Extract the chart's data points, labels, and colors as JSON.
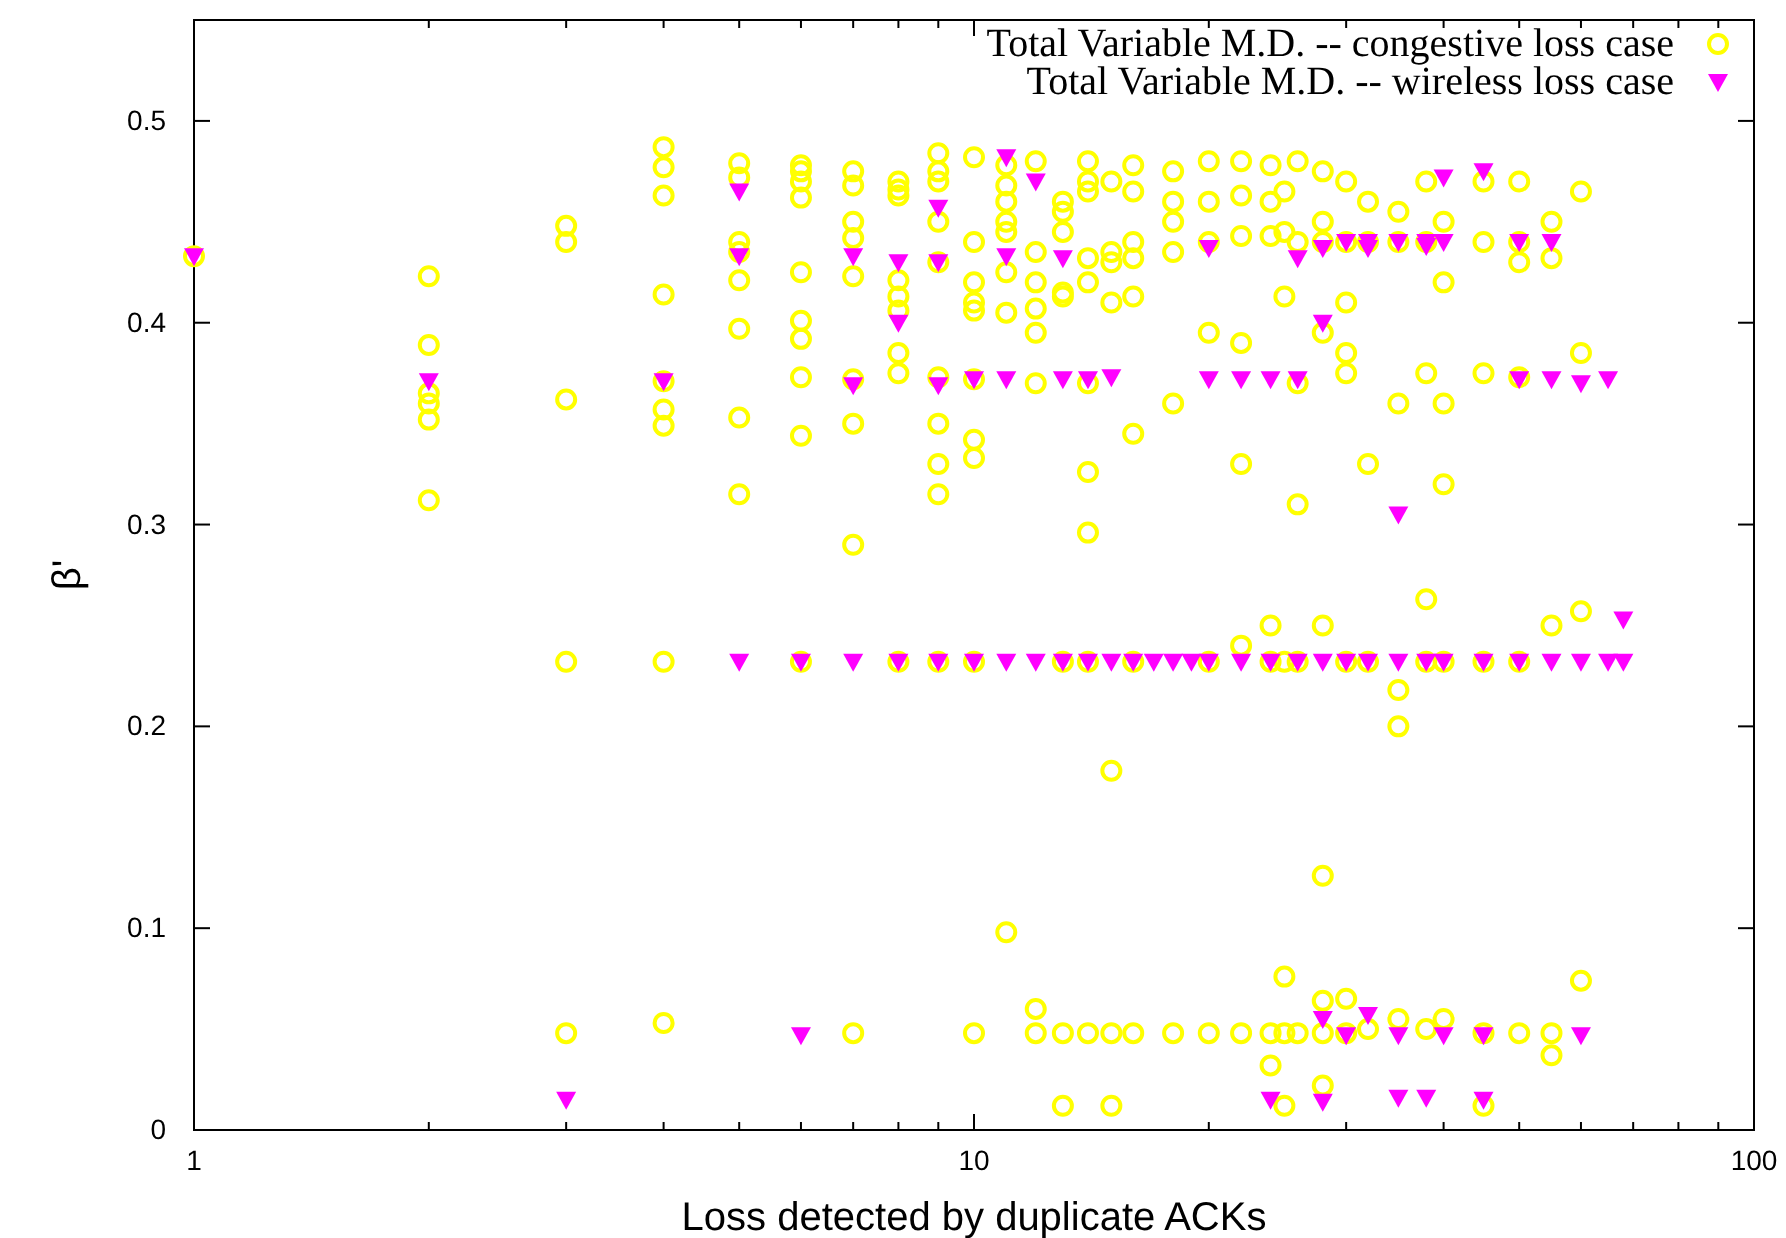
{
  "chart_data": {
    "type": "scatter",
    "xlabel": "Loss detected by duplicate ACKs",
    "ylabel": "β'",
    "log": "x",
    "grid": false,
    "legend": "top right",
    "xlim": [
      1,
      100
    ],
    "ylim": [
      0,
      0.55
    ],
    "xticks": [
      1,
      {
        "value": 2,
        "label": null
      },
      {
        "value": 3,
        "label": null
      },
      {
        "value": 4,
        "label": null
      },
      {
        "value": 5,
        "label": null
      },
      {
        "value": 6,
        "label": null
      },
      {
        "value": 7,
        "label": null
      },
      {
        "value": 8,
        "label": null
      },
      {
        "value": 9,
        "label": null
      },
      10,
      {
        "value": 20,
        "label": null
      },
      {
        "value": 30,
        "label": null
      },
      {
        "value": 40,
        "label": null
      },
      {
        "value": 50,
        "label": null
      },
      {
        "value": 60,
        "label": null
      },
      {
        "value": 70,
        "label": null
      },
      {
        "value": 80,
        "label": null
      },
      {
        "value": 90,
        "label": null
      },
      100
    ],
    "yticks": [
      0,
      0.1,
      0.2,
      0.3,
      0.4,
      0.5
    ],
    "series": [
      {
        "name": "Total Variable M.D. -- congestive loss case",
        "color": "#ffff00",
        "marker": "circle",
        "x": [
          1,
          2,
          2,
          2,
          2,
          2,
          2,
          3,
          3,
          3,
          3,
          3,
          4,
          4,
          4,
          4,
          4,
          4,
          4,
          4,
          4,
          5,
          5,
          5,
          5,
          5,
          5,
          5,
          5,
          6,
          6,
          6,
          6,
          6,
          6,
          6,
          6,
          6,
          6,
          7,
          7,
          7,
          7,
          7,
          7,
          7,
          7,
          7,
          8,
          8,
          8,
          8,
          8,
          8,
          8,
          8,
          8,
          9,
          9,
          9,
          9,
          9,
          9,
          9,
          9,
          9,
          9,
          10,
          10,
          10,
          10,
          10,
          10,
          10,
          10,
          10,
          10,
          11,
          11,
          11,
          11,
          11,
          11,
          11,
          11,
          12,
          12,
          12,
          12,
          12,
          12,
          12,
          12,
          13,
          13,
          13,
          13,
          13,
          13,
          13,
          13,
          14,
          14,
          14,
          14,
          14,
          14,
          14,
          14,
          14,
          14,
          15,
          15,
          15,
          15,
          15,
          15,
          15,
          16,
          16,
          16,
          16,
          16,
          16,
          16,
          16,
          18,
          18,
          18,
          18,
          18,
          18,
          20,
          20,
          20,
          20,
          20,
          20,
          22,
          22,
          22,
          22,
          22,
          22,
          22,
          24,
          24,
          24,
          24,
          24,
          24,
          24,
          25,
          25,
          25,
          25,
          25,
          25,
          25,
          26,
          26,
          26,
          26,
          26,
          26,
          28,
          28,
          28,
          28,
          28,
          28,
          28,
          28,
          28,
          30,
          30,
          30,
          30,
          30,
          30,
          30,
          30,
          32,
          32,
          32,
          32,
          32,
          35,
          35,
          35,
          35,
          35,
          35,
          38,
          38,
          38,
          38,
          38,
          38,
          40,
          40,
          40,
          40,
          40,
          40,
          45,
          45,
          45,
          45,
          45,
          45,
          50,
          50,
          50,
          50,
          50,
          50,
          55,
          55,
          55,
          55,
          55,
          60,
          60,
          60,
          60
        ],
        "values": [
          0.433,
          0.423,
          0.389,
          0.365,
          0.36,
          0.352,
          0.312,
          0.448,
          0.44,
          0.362,
          0.232,
          0.048,
          0.487,
          0.477,
          0.463,
          0.414,
          0.371,
          0.357,
          0.349,
          0.232,
          0.053,
          0.479,
          0.472,
          0.44,
          0.435,
          0.421,
          0.397,
          0.353,
          0.315,
          0.478,
          0.475,
          0.47,
          0.462,
          0.425,
          0.401,
          0.392,
          0.373,
          0.344,
          0.232,
          0.475,
          0.468,
          0.45,
          0.442,
          0.423,
          0.372,
          0.35,
          0.29,
          0.048,
          0.47,
          0.466,
          0.463,
          0.421,
          0.413,
          0.406,
          0.385,
          0.375,
          0.232,
          0.484,
          0.475,
          0.47,
          0.45,
          0.43,
          0.373,
          0.35,
          0.33,
          0.315,
          0.232,
          0.482,
          0.44,
          0.42,
          0.41,
          0.406,
          0.372,
          0.342,
          0.333,
          0.232,
          0.048,
          0.478,
          0.468,
          0.46,
          0.45,
          0.445,
          0.425,
          0.405,
          0.098,
          0.48,
          0.435,
          0.42,
          0.407,
          0.395,
          0.37,
          0.06,
          0.048,
          0.46,
          0.455,
          0.445,
          0.415,
          0.413,
          0.232,
          0.048,
          0.012,
          0.48,
          0.47,
          0.465,
          0.432,
          0.42,
          0.37,
          0.326,
          0.296,
          0.232,
          0.048,
          0.47,
          0.435,
          0.43,
          0.41,
          0.178,
          0.048,
          0.012,
          0.478,
          0.465,
          0.44,
          0.432,
          0.413,
          0.345,
          0.232,
          0.048,
          0.475,
          0.46,
          0.45,
          0.435,
          0.36,
          0.048,
          0.48,
          0.46,
          0.44,
          0.395,
          0.232,
          0.048,
          0.48,
          0.463,
          0.443,
          0.39,
          0.33,
          0.24,
          0.048,
          0.478,
          0.46,
          0.443,
          0.25,
          0.232,
          0.048,
          0.032,
          0.465,
          0.445,
          0.413,
          0.232,
          0.076,
          0.048,
          0.012,
          0.48,
          0.44,
          0.37,
          0.31,
          0.232,
          0.048,
          0.475,
          0.45,
          0.44,
          0.395,
          0.25,
          0.126,
          0.064,
          0.048,
          0.022,
          0.47,
          0.44,
          0.41,
          0.385,
          0.375,
          0.232,
          0.065,
          0.048,
          0.46,
          0.44,
          0.33,
          0.232,
          0.05,
          0.455,
          0.44,
          0.36,
          0.218,
          0.2,
          0.055,
          0.47,
          0.44,
          0.375,
          0.263,
          0.232,
          0.05,
          0.45,
          0.42,
          0.36,
          0.32,
          0.232,
          0.055,
          0.47,
          0.44,
          0.375,
          0.232,
          0.048,
          0.012,
          0.47,
          0.44,
          0.43,
          0.373,
          0.232,
          0.048,
          0.45,
          0.432,
          0.25,
          0.048,
          0.037,
          0.465,
          0.385,
          0.257,
          0.074
        ]
      },
      {
        "name": "Total Variable M.D. -- wireless loss case",
        "color": "#ff00ff",
        "marker": "triangle",
        "x": [
          1,
          2,
          3,
          4,
          5,
          5,
          5,
          6,
          6,
          7,
          7,
          7,
          8,
          8,
          8,
          9,
          9,
          9,
          9,
          10,
          10,
          11,
          11,
          11,
          11,
          12,
          12,
          13,
          13,
          13,
          14,
          14,
          15,
          15,
          16,
          17,
          18,
          19,
          20,
          20,
          20,
          22,
          22,
          24,
          24,
          24,
          26,
          26,
          26,
          28,
          28,
          28,
          28,
          28,
          30,
          30,
          30,
          32,
          32,
          32,
          32,
          35,
          35,
          35,
          35,
          35,
          38,
          38,
          38,
          38,
          40,
          40,
          40,
          40,
          45,
          45,
          45,
          45,
          50,
          50,
          50,
          55,
          55,
          55,
          60,
          60,
          60,
          65,
          65,
          68,
          68
        ],
        "values": [
          0.433,
          0.371,
          0.015,
          0.371,
          0.465,
          0.433,
          0.232,
          0.232,
          0.047,
          0.433,
          0.369,
          0.232,
          0.43,
          0.4,
          0.232,
          0.457,
          0.43,
          0.369,
          0.232,
          0.372,
          0.232,
          0.482,
          0.433,
          0.372,
          0.232,
          0.47,
          0.232,
          0.432,
          0.372,
          0.232,
          0.372,
          0.232,
          0.373,
          0.232,
          0.232,
          0.232,
          0.232,
          0.232,
          0.437,
          0.372,
          0.232,
          0.372,
          0.232,
          0.372,
          0.232,
          0.015,
          0.432,
          0.372,
          0.232,
          0.437,
          0.4,
          0.232,
          0.055,
          0.014,
          0.44,
          0.232,
          0.047,
          0.44,
          0.437,
          0.232,
          0.057,
          0.44,
          0.305,
          0.232,
          0.047,
          0.016,
          0.44,
          0.438,
          0.232,
          0.016,
          0.472,
          0.44,
          0.232,
          0.047,
          0.475,
          0.232,
          0.047,
          0.015,
          0.44,
          0.372,
          0.232,
          0.44,
          0.372,
          0.232,
          0.37,
          0.232,
          0.047,
          0.372,
          0.232,
          0.253,
          0.232
        ]
      }
    ]
  }
}
